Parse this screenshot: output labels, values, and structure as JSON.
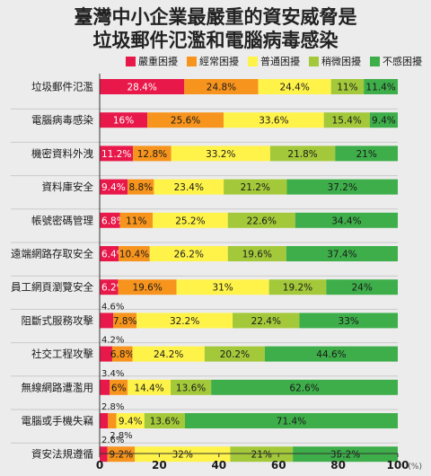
{
  "chart_data": {
    "type": "bar",
    "stacked": true,
    "orientation": "horizontal",
    "title_lines": [
      "臺灣中小企業最嚴重的資安威脅是",
      "垃圾郵件氾濫和電腦病毒感染"
    ],
    "unit_label": "(%)",
    "xlim": [
      0,
      100
    ],
    "xticks": [
      0,
      20,
      40,
      60,
      80,
      100
    ],
    "legend_placement": "top",
    "categories": [
      "垃圾郵件氾濫",
      "電腦病毒感染",
      "機密資料外洩",
      "資料庫安全",
      "帳號密碼管理",
      "遠端網路存取安全",
      "員工網頁瀏覽安全",
      "阻斷式服務攻擊",
      "社交工程攻擊",
      "無線網路遭濫用",
      "電腦或手機失竊",
      "資安法規遵循"
    ],
    "series": [
      {
        "name": "嚴重困擾",
        "color": "#e8194a",
        "values": [
          28.4,
          16,
          11.2,
          9.4,
          6.8,
          6.4,
          6.2,
          4.6,
          4.2,
          3.4,
          2.8,
          2.6
        ]
      },
      {
        "name": "經常困擾",
        "color": "#f7941d",
        "values": [
          24.8,
          25.6,
          12.8,
          8.8,
          11,
          10.4,
          19.6,
          7.8,
          6.8,
          6,
          2.8,
          9.2
        ]
      },
      {
        "name": "普通困擾",
        "color": "#fff34a",
        "values": [
          24.4,
          33.6,
          33.2,
          23.4,
          25.2,
          26.2,
          31,
          32.2,
          24.2,
          14.4,
          9.4,
          32
        ]
      },
      {
        "name": "稍微困擾",
        "color": "#a3c93a",
        "values": [
          11,
          15.4,
          21.8,
          21.2,
          22.6,
          19.6,
          19.2,
          22.4,
          20.2,
          13.6,
          13.6,
          21
        ]
      },
      {
        "name": "不感困擾",
        "color": "#3dae49",
        "values": [
          11.4,
          9.4,
          21,
          37.2,
          34.4,
          37.4,
          24,
          33,
          44.6,
          62.6,
          71.4,
          35.2
        ]
      }
    ],
    "label_text": [
      [
        "28.4%",
        "24.8%",
        "24.4%",
        "11%",
        "11.4%"
      ],
      [
        "16%",
        "25.6%",
        "33.6%",
        "15.4%",
        "9.4%"
      ],
      [
        "11.2%",
        "12.8%",
        "33.2%",
        "21.8%",
        "21%"
      ],
      [
        "9.4%",
        "8.8%",
        "23.4%",
        "21.2%",
        "37.2%"
      ],
      [
        "6.8%",
        "11%",
        "25.2%",
        "22.6%",
        "34.4%"
      ],
      [
        "6.4%",
        "10.4%",
        "26.2%",
        "19.6%",
        "37.4%"
      ],
      [
        "6.2%",
        "19.6%",
        "31%",
        "19.2%",
        "24%"
      ],
      [
        "4.6%",
        "7.8%",
        "32.2%",
        "22.4%",
        "33%"
      ],
      [
        "4.2%",
        "6.8%",
        "24.2%",
        "20.2%",
        "44.6%"
      ],
      [
        "3.4%",
        "6%",
        "14.4%",
        "13.6%",
        "62.6%"
      ],
      [
        "2.8%",
        "2.8%",
        "9.4%",
        "13.6%",
        "71.4%"
      ],
      [
        "2.6%",
        "9.2%",
        "32%",
        "21%",
        "35.2%"
      ]
    ]
  }
}
